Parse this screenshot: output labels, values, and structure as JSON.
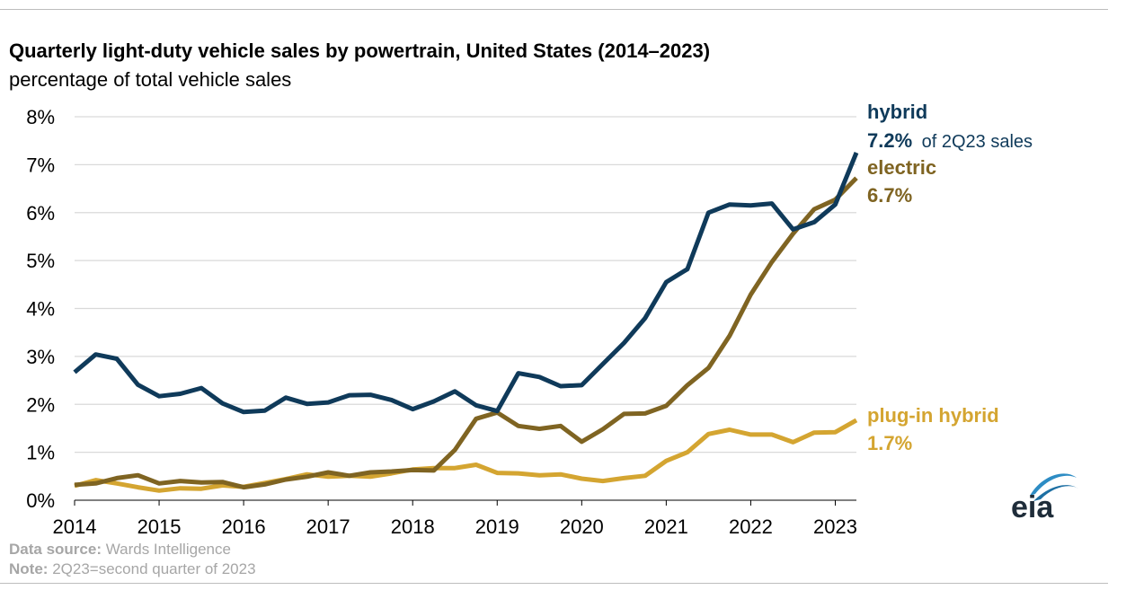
{
  "title": "Quarterly light-duty vehicle sales by powertrain, United States (2014–2023)",
  "subtitle": "percentage of total vehicle sales",
  "colors": {
    "hybrid": "#0f3a5a",
    "electric": "#7f6422",
    "plugin_hybrid": "#d4a531",
    "grid": "#d9d9d9",
    "footer": "#a6a6a6"
  },
  "labels": {
    "hybrid_name": "hybrid",
    "hybrid_value": "7.2%",
    "hybrid_note": "of 2Q23 sales",
    "electric_name": "electric",
    "electric_value": "6.7%",
    "plugin_name": "plug-in hybrid",
    "plugin_value": "1.7%"
  },
  "logo": {
    "text": "eia",
    "icon": "eia-logo-icon"
  },
  "footer": {
    "source_label": "Data source:",
    "source_text": "Wards Intelligence",
    "note_label": "Note:",
    "note_text": "2Q23=second quarter of 2023"
  },
  "chart_data": {
    "type": "line",
    "title": "Quarterly light-duty vehicle sales by powertrain, United States (2014–2023)",
    "subtitle": "percentage of total vehicle sales",
    "ylim": [
      0,
      8
    ],
    "xlim": [
      2014,
      2023.25
    ],
    "y_ticks": [
      "0%",
      "1%",
      "2%",
      "3%",
      "4%",
      "5%",
      "6%",
      "7%",
      "8%"
    ],
    "x_ticks": [
      "2014",
      "2015",
      "2016",
      "2017",
      "2018",
      "2019",
      "2020",
      "2021",
      "2022",
      "2023"
    ],
    "grid": true,
    "x": [
      "1Q14",
      "2Q14",
      "3Q14",
      "4Q14",
      "1Q15",
      "2Q15",
      "3Q15",
      "4Q15",
      "1Q16",
      "2Q16",
      "3Q16",
      "4Q16",
      "1Q17",
      "2Q17",
      "3Q17",
      "4Q17",
      "1Q18",
      "2Q18",
      "3Q18",
      "4Q18",
      "1Q19",
      "2Q19",
      "3Q19",
      "4Q19",
      "1Q20",
      "2Q20",
      "3Q20",
      "4Q20",
      "1Q21",
      "2Q21",
      "3Q21",
      "4Q21",
      "1Q22",
      "2Q22",
      "3Q22",
      "4Q22",
      "1Q23",
      "2Q23"
    ],
    "series": [
      {
        "name": "hybrid",
        "values": [
          2.67,
          3.04,
          2.95,
          2.41,
          2.17,
          2.22,
          2.34,
          2.02,
          1.84,
          1.87,
          2.14,
          2.01,
          2.04,
          2.19,
          2.2,
          2.09,
          1.9,
          2.06,
          2.27,
          1.98,
          1.86,
          2.65,
          2.57,
          2.38,
          2.4,
          2.84,
          3.28,
          3.8,
          4.55,
          4.82,
          6.0,
          6.17,
          6.15,
          6.19,
          5.65,
          5.8,
          6.17,
          7.25
        ]
      },
      {
        "name": "electric",
        "values": [
          0.32,
          0.35,
          0.46,
          0.52,
          0.35,
          0.4,
          0.37,
          0.38,
          0.27,
          0.33,
          0.43,
          0.49,
          0.58,
          0.51,
          0.58,
          0.6,
          0.63,
          0.62,
          1.05,
          1.7,
          1.83,
          1.55,
          1.49,
          1.55,
          1.22,
          1.48,
          1.8,
          1.81,
          1.97,
          2.4,
          2.76,
          3.43,
          4.29,
          4.97,
          5.56,
          6.07,
          6.27,
          6.72
        ]
      },
      {
        "name": "plug-in hybrid",
        "values": [
          0.3,
          0.42,
          0.35,
          0.27,
          0.2,
          0.25,
          0.24,
          0.31,
          0.28,
          0.36,
          0.44,
          0.54,
          0.49,
          0.51,
          0.49,
          0.56,
          0.64,
          0.67,
          0.67,
          0.74,
          0.57,
          0.56,
          0.52,
          0.54,
          0.45,
          0.4,
          0.46,
          0.51,
          0.82,
          1.0,
          1.38,
          1.47,
          1.37,
          1.37,
          1.21,
          1.41,
          1.42,
          1.67
        ]
      }
    ]
  }
}
